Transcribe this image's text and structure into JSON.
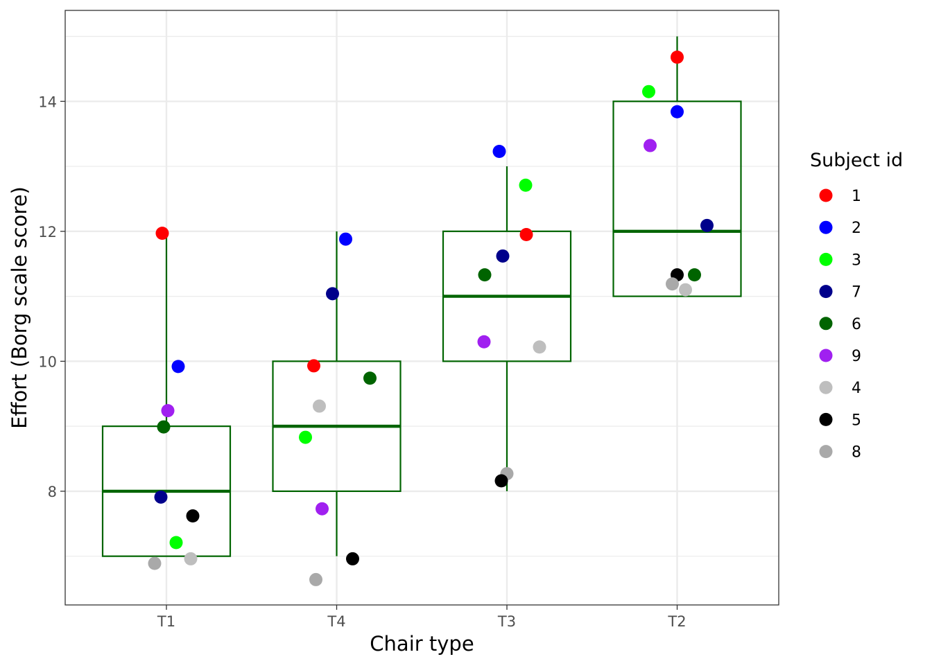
{
  "chart_data": {
    "type": "boxplot",
    "xlabel": "Chair type",
    "ylabel": "Effort (Borg scale score)",
    "categories": [
      "T1",
      "T4",
      "T3",
      "T2"
    ],
    "ylim": [
      6.25,
      15.4
    ],
    "yticks": [
      8,
      10,
      12,
      14
    ],
    "grid": true,
    "legend": {
      "title": "Subject id",
      "placement": "right",
      "entries": [
        {
          "label": "1",
          "color": "#ff0000"
        },
        {
          "label": "2",
          "color": "#0000ff"
        },
        {
          "label": "3",
          "color": "#00ff00"
        },
        {
          "label": "7",
          "color": "#00008b"
        },
        {
          "label": "6",
          "color": "#006400"
        },
        {
          "label": "9",
          "color": "#a020f0"
        },
        {
          "label": "4",
          "color": "#bebebe"
        },
        {
          "label": "5",
          "color": "#000000"
        },
        {
          "label": "8",
          "color": "#a9a9a9"
        }
      ]
    },
    "box_color": "#006400",
    "boxes": [
      {
        "category": "T1",
        "whisker_low": 7,
        "q1": 7,
        "median": 8,
        "q3": 9,
        "whisker_high": 12
      },
      {
        "category": "T4",
        "whisker_low": 7,
        "q1": 8,
        "median": 9,
        "q3": 10,
        "whisker_high": 12
      },
      {
        "category": "T3",
        "whisker_low": 8,
        "q1": 10,
        "median": 11,
        "q3": 12,
        "whisker_high": 13
      },
      {
        "category": "T2",
        "whisker_low": 11,
        "q1": 11,
        "median": 12,
        "q3": 14,
        "whisker_high": 15
      }
    ],
    "points": [
      {
        "category": "T1",
        "subject": "1",
        "y": 11.97
      },
      {
        "category": "T1",
        "subject": "2",
        "y": 9.92
      },
      {
        "category": "T1",
        "subject": "9",
        "y": 9.24
      },
      {
        "category": "T1",
        "subject": "6",
        "y": 8.99
      },
      {
        "category": "T1",
        "subject": "7",
        "y": 7.91
      },
      {
        "category": "T1",
        "subject": "5",
        "y": 7.62
      },
      {
        "category": "T1",
        "subject": "3",
        "y": 7.21
      },
      {
        "category": "T1",
        "subject": "4",
        "y": 6.96
      },
      {
        "category": "T1",
        "subject": "8",
        "y": 6.89
      },
      {
        "category": "T4",
        "subject": "2",
        "y": 11.88
      },
      {
        "category": "T4",
        "subject": "7",
        "y": 11.04
      },
      {
        "category": "T4",
        "subject": "1",
        "y": 9.93
      },
      {
        "category": "T4",
        "subject": "6",
        "y": 9.74
      },
      {
        "category": "T4",
        "subject": "4",
        "y": 9.31
      },
      {
        "category": "T4",
        "subject": "3",
        "y": 8.83
      },
      {
        "category": "T4",
        "subject": "9",
        "y": 7.73
      },
      {
        "category": "T4",
        "subject": "5",
        "y": 6.96
      },
      {
        "category": "T4",
        "subject": "8",
        "y": 6.64
      },
      {
        "category": "T3",
        "subject": "2",
        "y": 13.23
      },
      {
        "category": "T3",
        "subject": "3",
        "y": 12.71
      },
      {
        "category": "T3",
        "subject": "1",
        "y": 11.95
      },
      {
        "category": "T3",
        "subject": "7",
        "y": 11.62
      },
      {
        "category": "T3",
        "subject": "6",
        "y": 11.33
      },
      {
        "category": "T3",
        "subject": "9",
        "y": 10.3
      },
      {
        "category": "T3",
        "subject": "4",
        "y": 10.22
      },
      {
        "category": "T3",
        "subject": "8",
        "y": 8.27
      },
      {
        "category": "T3",
        "subject": "5",
        "y": 8.16
      },
      {
        "category": "T2",
        "subject": "1",
        "y": 14.68
      },
      {
        "category": "T2",
        "subject": "3",
        "y": 14.15
      },
      {
        "category": "T2",
        "subject": "2",
        "y": 13.84
      },
      {
        "category": "T2",
        "subject": "9",
        "y": 13.32
      },
      {
        "category": "T2",
        "subject": "7",
        "y": 12.09
      },
      {
        "category": "T2",
        "subject": "5",
        "y": 11.33
      },
      {
        "category": "T2",
        "subject": "6",
        "y": 11.33
      },
      {
        "category": "T2",
        "subject": "8",
        "y": 11.19
      },
      {
        "category": "T2",
        "subject": "4",
        "y": 11.1
      }
    ]
  }
}
